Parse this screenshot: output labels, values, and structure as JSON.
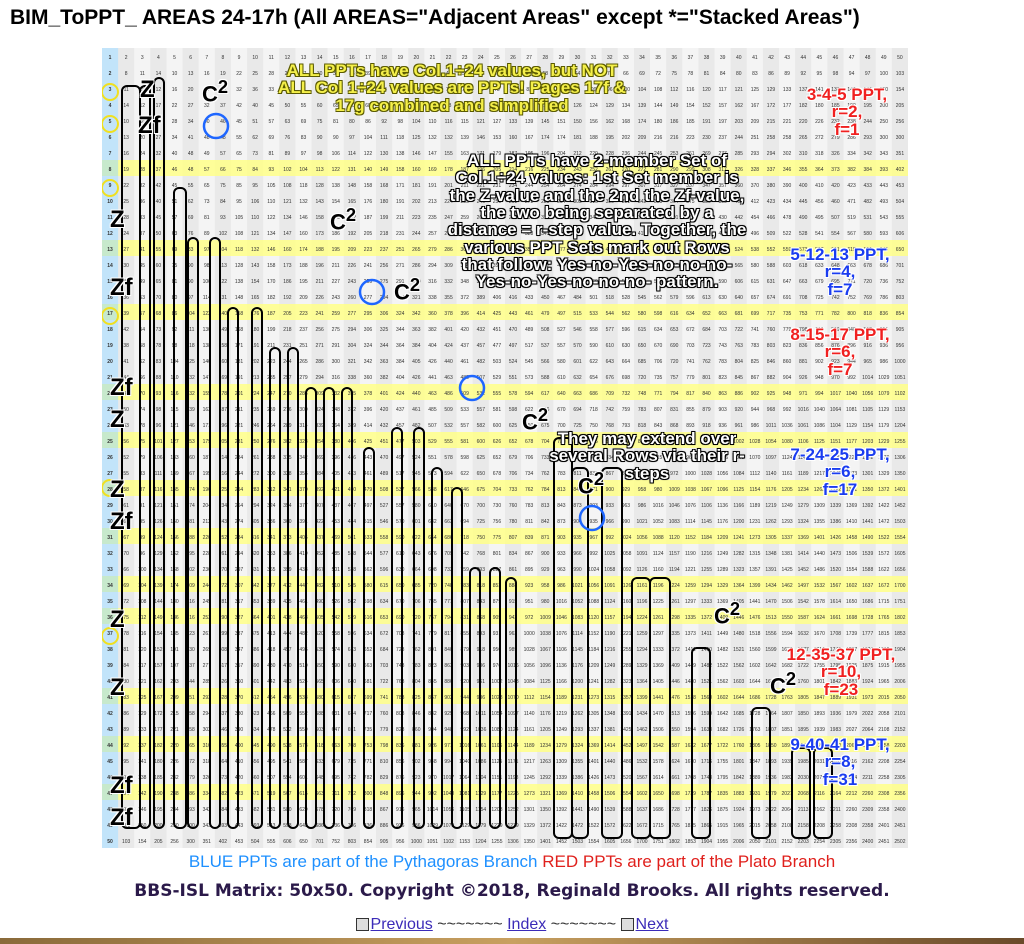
{
  "title": "BIM_ToPPT_ AREAS 24-17h (All AREAS=\"Adjacent Areas\" except *=\"Stacked Areas\")",
  "matrix": {
    "size": 50,
    "highlight_color": "#ffff88",
    "blue_col_color": "#8fd3ff"
  },
  "notes": {
    "yellow_top": "ALL PPTs have Col.1÷24 values, but NOT ALL Col 1÷24 values are PPTs! Pages 17f & 17g combined and simplified",
    "center": "ALL PPTs have 2-member Set of Col.1÷24 values: 1st Set member is the Z-value and the 2nd the Zf-value, the two being separated by a distance = r-step value. Together, the various PPT Sets mark out Rows that follow: Yes-no-Yes-no-no-no-Yes-no-Yes-no-no-no- pattern.",
    "extend": "They may extend over several Rows via their r-steps"
  },
  "ppts": [
    {
      "name": "3-4-5 PPT,",
      "r": "r=2,",
      "f": "f=1",
      "branch": "red"
    },
    {
      "name": "5-12-13 PPT,",
      "r": "r=4,",
      "f": "f=7",
      "branch": "blue"
    },
    {
      "name": "8-15-17 PPT,",
      "r": "r=6,",
      "f": "f=7",
      "branch": "red"
    },
    {
      "name": "7-24-25 PPT,",
      "r": "r=6,",
      "f": "f=17",
      "branch": "blue"
    },
    {
      "name": "12-35-37 PPT,",
      "r": "r=10,",
      "f": "f=23",
      "branch": "red"
    },
    {
      "name": "9-40-41 PPT,",
      "r": "r=8,",
      "f": "f=31",
      "branch": "blue"
    }
  ],
  "labels": {
    "z": "Z",
    "zf": "Zf",
    "c2": "C",
    "c2_sup": "2"
  },
  "legend": {
    "blue": "BLUE PPTs are part of the Pythagoras Branch",
    "red": "RED PPTs are part of the Plato Branch"
  },
  "copyright": "BBS-ISL Matrix: 50x50. Copyright ©2018, Reginald Brooks. All rights reserved.",
  "nav": {
    "previous": "Previous",
    "sep1": "~~~~~~~",
    "index": "Index",
    "sep2": "~~~~~~~",
    "next": "Next"
  }
}
